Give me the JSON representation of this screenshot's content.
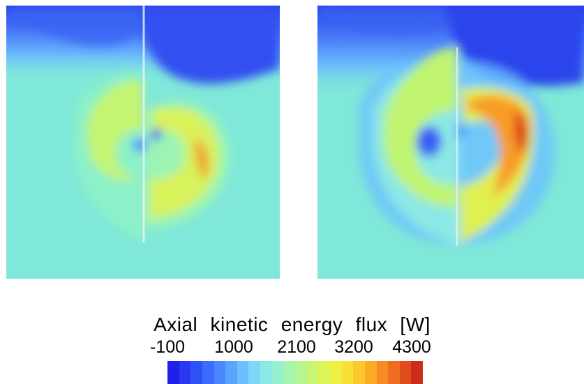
{
  "colorbar": {
    "title": "Axial kinetic energy flux [W]",
    "ticks": [
      "-100",
      "1000",
      "2100",
      "3200",
      "4300"
    ],
    "colors": [
      "#2020e8",
      "#2838f0",
      "#3050f8",
      "#3c6cfc",
      "#4a88ff",
      "#5aa4ff",
      "#6cc0ff",
      "#7cd8f8",
      "#8ce8e4",
      "#96f0d0",
      "#a6f4b0",
      "#b6f690",
      "#c8f670",
      "#dcf458",
      "#ecf040",
      "#f8e034",
      "#fcc82c",
      "#fcaa28",
      "#f88c24",
      "#f06c20",
      "#e04c1c",
      "#cc2c18"
    ]
  },
  "panels": [
    {
      "name": "left",
      "max_level": "high"
    },
    {
      "name": "right",
      "max_level": "peak"
    }
  ]
}
